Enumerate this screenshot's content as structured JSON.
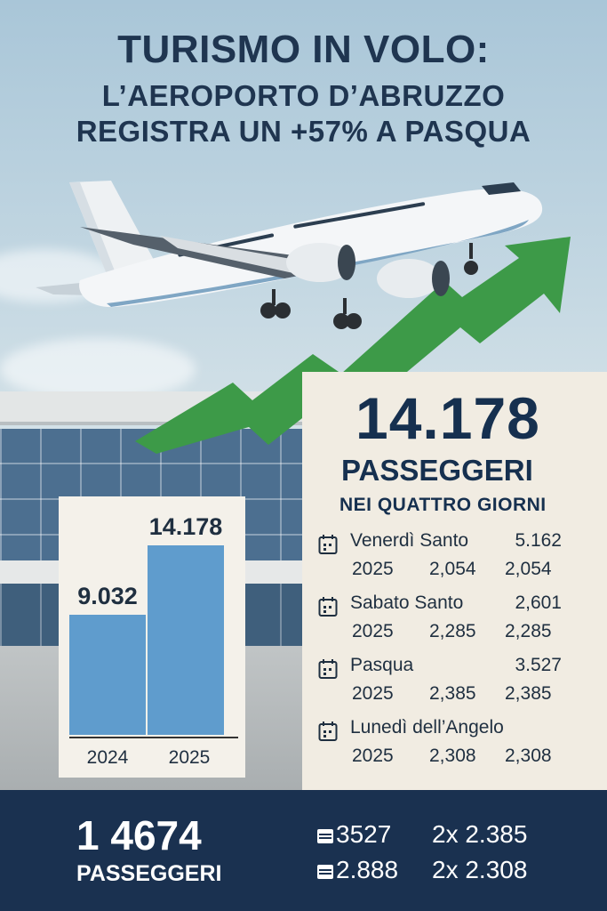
{
  "title": {
    "line1": "TURISMO IN VOLO:",
    "line2": "L’AEROPORTO D’ABRUZZO",
    "line3": "REGISTRA UN +57% A PASQUA"
  },
  "highlight": {
    "value": "14.178",
    "label": "PASSEGGERI",
    "sublabel": "NEI QUATTRO GIORNI"
  },
  "days": [
    {
      "name": "Venerdì Santo",
      "value": "5.162",
      "year": "2025",
      "v1": "2,054",
      "v2": "2,054"
    },
    {
      "name": "Sabato Santo",
      "value": "2,601",
      "year": "2025",
      "v1": "2,285",
      "v2": "2,285"
    },
    {
      "name": "Pasqua",
      "value": "3.527",
      "year": "2025",
      "v1": "2,385",
      "v2": "2,385"
    },
    {
      "name": "Lunedì dell’Angelo",
      "value": "",
      "year": "2025",
      "v1": "2,308",
      "v2": "2,308"
    }
  ],
  "chart_data": {
    "type": "bar",
    "categories": [
      "2024",
      "2025"
    ],
    "values": [
      9032,
      14178
    ],
    "value_labels": [
      "9.032",
      "14.178"
    ],
    "ylim": [
      0,
      16000
    ],
    "grid": false
  },
  "footer": {
    "value": "1 4674",
    "label": "PASSEGGERI",
    "rows": [
      {
        "a": "3527",
        "b": "2x 2.385"
      },
      {
        "a": "2.888",
        "b": "2x 2.308"
      }
    ]
  },
  "colors": {
    "navy": "#1a3150",
    "green_arrow": "#3d9a48",
    "bar_blue": "#5f9ccd",
    "panel_bg": "#f1ece2"
  }
}
